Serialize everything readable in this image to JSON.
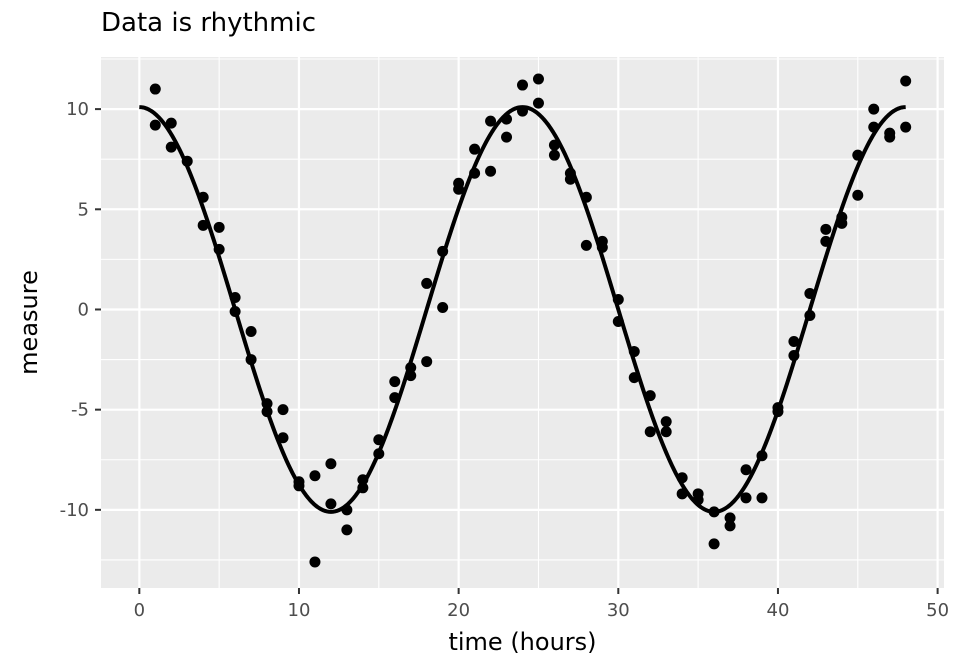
{
  "chart_data": {
    "type": "scatter",
    "title": "Data is rhythmic",
    "xlabel": "time (hours)",
    "ylabel": "measure",
    "xlim": [
      -2.4,
      50.4
    ],
    "ylim": [
      -13.9,
      12.6
    ],
    "x_ticks": [
      0,
      10,
      20,
      30,
      40,
      50
    ],
    "x_tick_labels": [
      "0",
      "10",
      "20",
      "30",
      "40",
      "50"
    ],
    "x_minor_ticks": [
      5,
      15,
      25,
      35,
      45
    ],
    "y_ticks": [
      -10,
      -5,
      0,
      5,
      10
    ],
    "y_tick_labels": [
      "-10",
      "-5",
      "0",
      "5",
      "10"
    ],
    "y_minor_ticks": [
      -12.5,
      -7.5,
      -2.5,
      2.5,
      7.5,
      12.5
    ],
    "grid": true,
    "legend": "none",
    "colors": {
      "panel": "#ebebeb",
      "grid": "#ffffff",
      "points": "#000000",
      "line": "#000000"
    },
    "series": [
      {
        "type": "scatter",
        "points": [
          [
            1,
            11.0
          ],
          [
            1,
            9.2
          ],
          [
            2,
            9.3
          ],
          [
            2,
            8.1
          ],
          [
            3,
            7.4
          ],
          [
            4,
            5.6
          ],
          [
            4,
            4.2
          ],
          [
            5,
            4.1
          ],
          [
            5,
            3.0
          ],
          [
            6,
            0.6
          ],
          [
            6,
            -0.1
          ],
          [
            7,
            -1.1
          ],
          [
            7,
            -2.5
          ],
          [
            8,
            -4.7
          ],
          [
            8,
            -5.1
          ],
          [
            9,
            -5.0
          ],
          [
            9,
            -6.4
          ],
          [
            10,
            -8.6
          ],
          [
            10,
            -8.8
          ],
          [
            11,
            -8.3
          ],
          [
            11,
            -12.6
          ],
          [
            12,
            -7.7
          ],
          [
            12,
            -9.7
          ],
          [
            13,
            -10.0
          ],
          [
            13,
            -11.0
          ],
          [
            14,
            -8.5
          ],
          [
            14,
            -8.9
          ],
          [
            15,
            -6.5
          ],
          [
            15,
            -7.2
          ],
          [
            16,
            -3.6
          ],
          [
            16,
            -4.4
          ],
          [
            17,
            -2.9
          ],
          [
            17,
            -3.3
          ],
          [
            18,
            1.3
          ],
          [
            18,
            -2.6
          ],
          [
            19,
            2.9
          ],
          [
            19,
            0.1
          ],
          [
            20,
            6.3
          ],
          [
            20,
            6.0
          ],
          [
            21,
            8.0
          ],
          [
            21,
            6.8
          ],
          [
            22,
            9.4
          ],
          [
            22,
            6.9
          ],
          [
            23,
            9.5
          ],
          [
            23,
            8.6
          ],
          [
            24,
            11.2
          ],
          [
            24,
            9.9
          ],
          [
            25,
            11.5
          ],
          [
            25,
            10.3
          ],
          [
            26,
            8.2
          ],
          [
            26,
            7.7
          ],
          [
            27,
            6.8
          ],
          [
            27,
            6.5
          ],
          [
            28,
            5.6
          ],
          [
            28,
            3.2
          ],
          [
            29,
            3.4
          ],
          [
            29,
            3.1
          ],
          [
            30,
            0.5
          ],
          [
            30,
            -0.6
          ],
          [
            31,
            -2.1
          ],
          [
            31,
            -3.4
          ],
          [
            32,
            -4.3
          ],
          [
            32,
            -6.1
          ],
          [
            33,
            -5.6
          ],
          [
            33,
            -6.1
          ],
          [
            34,
            -8.4
          ],
          [
            34,
            -9.2
          ],
          [
            35,
            -9.2
          ],
          [
            35,
            -9.5
          ],
          [
            36,
            -10.1
          ],
          [
            36,
            -11.7
          ],
          [
            37,
            -10.4
          ],
          [
            37,
            -10.8
          ],
          [
            38,
            -8.0
          ],
          [
            38,
            -9.4
          ],
          [
            39,
            -7.3
          ],
          [
            39,
            -9.4
          ],
          [
            40,
            -4.9
          ],
          [
            40,
            -5.1
          ],
          [
            41,
            -1.6
          ],
          [
            41,
            -2.3
          ],
          [
            42,
            0.8
          ],
          [
            42,
            -0.3
          ],
          [
            43,
            4.0
          ],
          [
            43,
            3.4
          ],
          [
            44,
            4.6
          ],
          [
            44,
            4.3
          ],
          [
            45,
            7.7
          ],
          [
            45,
            5.7
          ],
          [
            46,
            10.0
          ],
          [
            46,
            9.1
          ],
          [
            47,
            8.8
          ],
          [
            47,
            8.6
          ],
          [
            48,
            11.4
          ],
          [
            48,
            9.1
          ]
        ]
      },
      {
        "type": "line",
        "function": "10.1 * cos(2*pi*t/24)",
        "amplitude": 10.1,
        "period": 24,
        "x_range": [
          0,
          48
        ]
      }
    ]
  }
}
